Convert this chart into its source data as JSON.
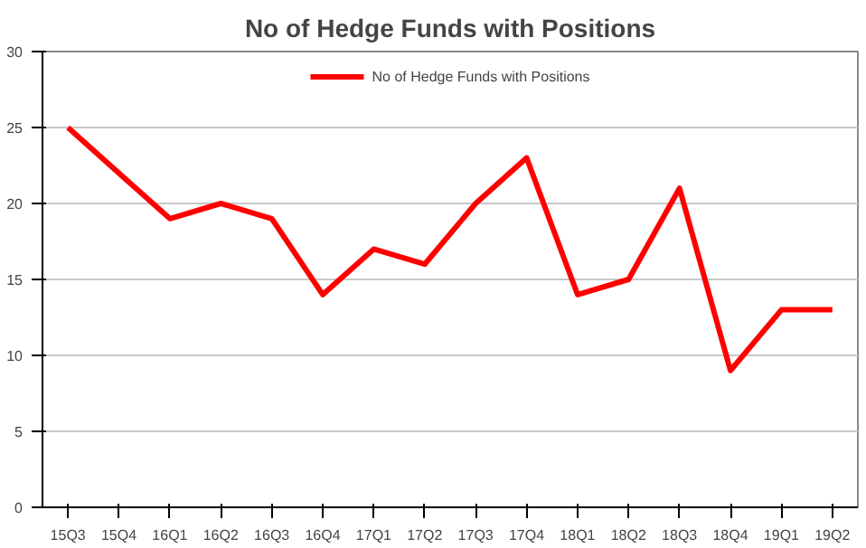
{
  "chart_data": {
    "type": "line",
    "title": "No of Hedge Funds with Positions",
    "categories": [
      "15Q3",
      "15Q4",
      "16Q1",
      "16Q2",
      "16Q3",
      "16Q4",
      "17Q1",
      "17Q2",
      "17Q3",
      "17Q4",
      "18Q1",
      "18Q2",
      "18Q3",
      "18Q4",
      "19Q1",
      "19Q2"
    ],
    "series": [
      {
        "name": "No of Hedge Funds with Positions",
        "color": "#ff0000",
        "values": [
          25,
          22,
          19,
          20,
          19,
          14,
          17,
          16,
          20,
          23,
          14,
          15,
          21,
          9,
          13,
          13
        ]
      }
    ],
    "ylim": [
      0,
      30
    ],
    "yticks": [
      0,
      5,
      10,
      15,
      20,
      25,
      30
    ],
    "grid": "y",
    "legend": "top",
    "marker": "none",
    "line_style": "solid"
  }
}
